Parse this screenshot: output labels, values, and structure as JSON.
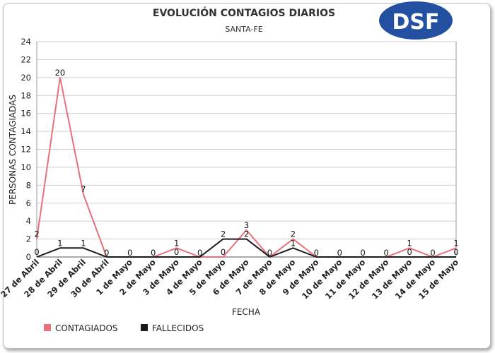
{
  "chart_data": {
    "type": "line",
    "title": "EVOLUCIÓN CONTAGIOS DIARIOS",
    "subtitle": "SANTA-FE",
    "xlabel": "FECHA",
    "ylabel": "PERSONAS CONTAGIADAS",
    "ylim": [
      0,
      24
    ],
    "yticks": [
      "0",
      "2",
      "4",
      "6",
      "8",
      "10",
      "12",
      "14",
      "16",
      "18",
      "20",
      "22",
      "24"
    ],
    "grid": "horizontal",
    "legend_position": "bottom-left",
    "categories": [
      "27 de Abril",
      "28 de Abril",
      "29 de Abril",
      "30 de Abril",
      "1 de Mayo",
      "2 de Mayo",
      "3 de Mayo",
      "4 de Mayo",
      "5 de Mayo",
      "6 de Mayo",
      "7 de Mayo",
      "8 de Mayo",
      "9 de Mayo",
      "10 de Mayo",
      "11 de Mayo",
      "12 de Mayo",
      "13 de Mayo",
      "14 de Mayo",
      "15 de Mayo"
    ],
    "series": [
      {
        "name": "CONTAGIADOS",
        "color": "#e8707a",
        "values": [
          2,
          20,
          7,
          0,
          0,
          0,
          1,
          0,
          0,
          3,
          0,
          2,
          0,
          0,
          0,
          0,
          1,
          0,
          1
        ]
      },
      {
        "name": "FALLECIDOS",
        "color": "#1a1a1a",
        "values": [
          0,
          1,
          1,
          0,
          0,
          0,
          0,
          0,
          2,
          2,
          0,
          1,
          0,
          0,
          0,
          0,
          0,
          0,
          0
        ]
      }
    ]
  },
  "logo": {
    "text": "DSF",
    "fill": "#2350a0"
  }
}
